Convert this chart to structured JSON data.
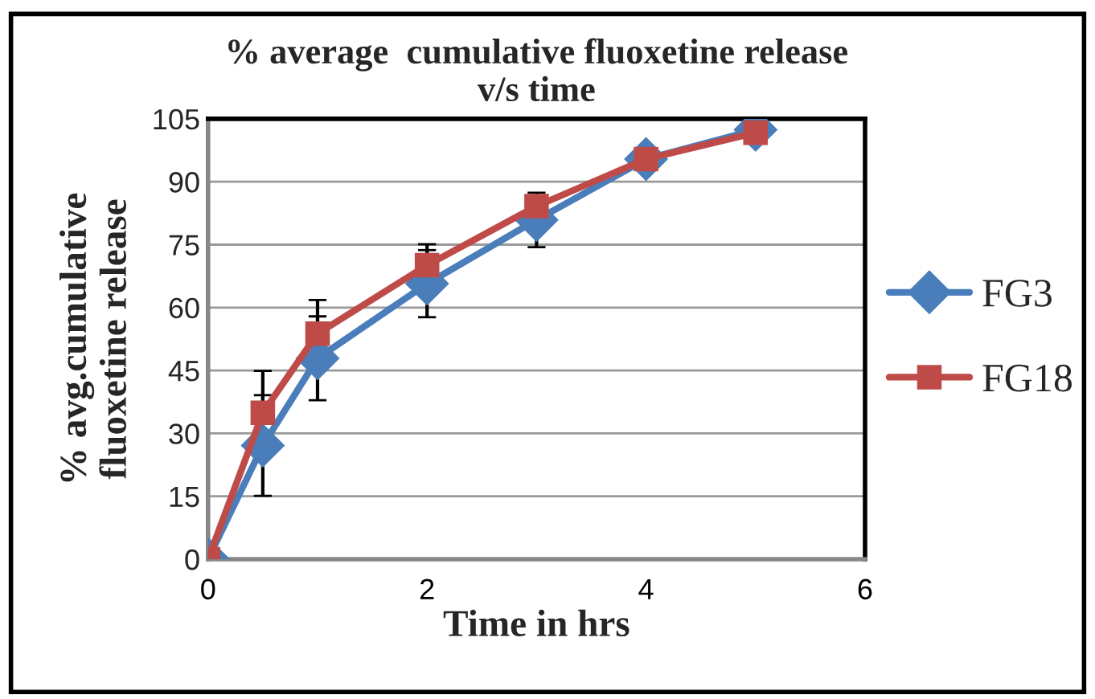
{
  "chart_data": {
    "type": "line",
    "title": "% average  cumulative fluoxetine release\nv/s time",
    "xlabel": "Time in hrs",
    "ylabel": "% avg.cumulative\nfluoxetine release",
    "x": [
      0,
      0.5,
      1,
      2,
      3,
      4,
      5
    ],
    "series": [
      {
        "name": "FG3",
        "color": "#4a7ebb",
        "marker": "diamond",
        "values": [
          0,
          27.1,
          47.9,
          65.7,
          80.9,
          95.4,
          102.4
        ],
        "errors": [
          null,
          12,
          10,
          8,
          6.5,
          null,
          null
        ]
      },
      {
        "name": "FG18",
        "color": "#be4b48",
        "marker": "square",
        "values": [
          0,
          34.9,
          53.8,
          70.1,
          84.2,
          95.4,
          101.7
        ],
        "errors": [
          null,
          10,
          8,
          5,
          null,
          null,
          null
        ]
      }
    ],
    "xlim": [
      0,
      6
    ],
    "xticks": [
      0,
      2,
      4,
      6
    ],
    "ylim": [
      0,
      105
    ],
    "yticks": [
      0,
      15,
      30,
      45,
      60,
      75,
      90,
      105
    ],
    "grid": "y",
    "legend": "right",
    "line_style": "solid"
  }
}
